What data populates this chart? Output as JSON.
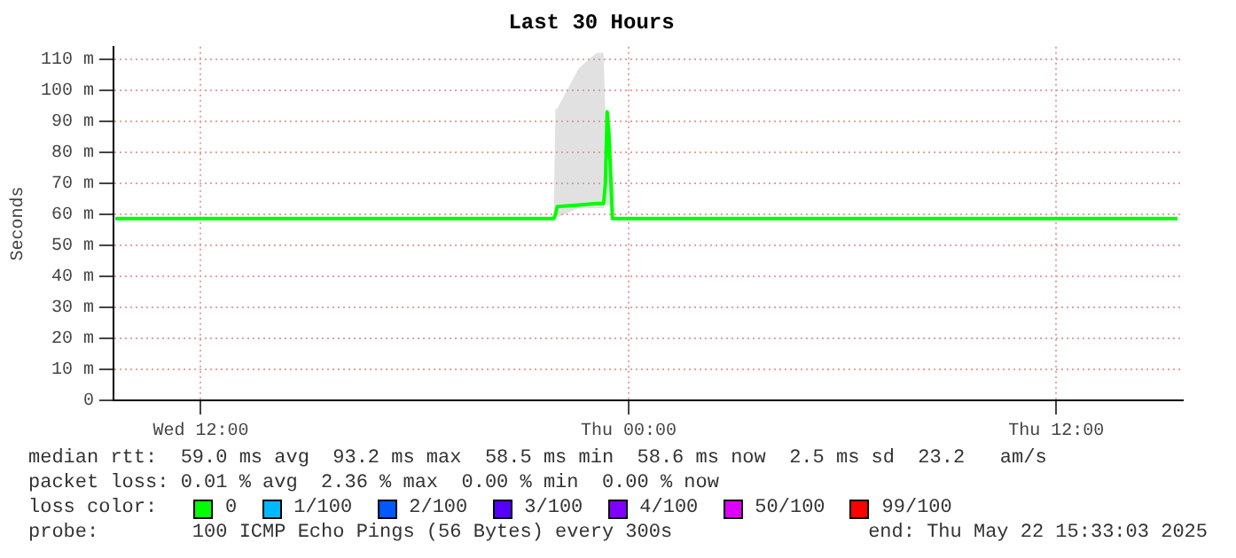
{
  "chart_data": {
    "type": "line",
    "title": "Last 30 Hours",
    "ylabel": "Seconds",
    "legend_title": "loss color:",
    "x": [
      "2025-05-21T09:36",
      "2025-05-21T21:54",
      "2025-05-21T21:57",
      "2025-05-21T22:00",
      "2025-05-21T22:36",
      "2025-05-21T23:06",
      "2025-05-21T23:18",
      "2025-05-21T23:21",
      "2025-05-21T23:24",
      "2025-05-21T23:27",
      "2025-05-21T23:33",
      "2025-05-22T15:24"
    ],
    "xlim": [
      "2025-05-21T09:33",
      "2025-05-22T15:33"
    ],
    "xticks": [
      {
        "value": "2025-05-21T12:00",
        "label": "Wed 12:00"
      },
      {
        "value": "2025-05-22T00:00",
        "label": "Thu 00:00"
      },
      {
        "value": "2025-05-22T12:00",
        "label": "Thu 12:00"
      }
    ],
    "ylim": [
      0,
      114
    ],
    "yticks": [
      {
        "value": 0,
        "label": "0"
      },
      {
        "value": 10,
        "label": "10 m"
      },
      {
        "value": 20,
        "label": "20 m"
      },
      {
        "value": 30,
        "label": "30 m"
      },
      {
        "value": 40,
        "label": "40 m"
      },
      {
        "value": 50,
        "label": "50 m"
      },
      {
        "value": 60,
        "label": "60 m"
      },
      {
        "value": 70,
        "label": "70 m"
      },
      {
        "value": 80,
        "label": "80 m"
      },
      {
        "value": 90,
        "label": "90 m"
      },
      {
        "value": 100,
        "label": "100 m"
      },
      {
        "value": 110,
        "label": "110 m"
      }
    ],
    "series": [
      {
        "name": "0",
        "color": "#00ff00",
        "values": [
          58.6,
          58.6,
          60,
          62.5,
          63,
          63.5,
          63.5,
          70,
          93,
          86,
          58.6,
          58.6
        ],
        "lower": [
          58.6,
          58.6,
          58,
          59,
          62,
          62,
          62,
          63,
          63,
          63,
          58.6,
          58.6
        ],
        "upper": [
          58.6,
          58.6,
          94,
          94,
          107,
          112,
          112,
          93,
          93,
          93,
          58.6,
          58.6
        ]
      },
      {
        "name": "1/100",
        "color": "#00b8ff",
        "values": [
          null,
          null,
          null,
          null,
          null,
          null,
          null,
          null,
          null,
          null,
          null,
          null
        ]
      },
      {
        "name": "2/100",
        "color": "#0059ff",
        "values": [
          null,
          null,
          null,
          null,
          null,
          null,
          null,
          null,
          null,
          null,
          null,
          null
        ]
      },
      {
        "name": "3/100",
        "color": "#5500ff",
        "values": [
          null,
          null,
          null,
          null,
          null,
          null,
          null,
          null,
          null,
          null,
          null,
          null
        ]
      },
      {
        "name": "4/100",
        "color": "#7e00ff",
        "values": [
          null,
          null,
          null,
          null,
          null,
          null,
          null,
          null,
          null,
          null,
          null,
          null
        ]
      },
      {
        "name": "50/100",
        "color": "#dd00ff",
        "values": [
          null,
          null,
          null,
          null,
          null,
          null,
          null,
          null,
          null,
          null,
          null,
          null
        ]
      },
      {
        "name": "99/100",
        "color": "#ff0000",
        "values": [
          null,
          null,
          null,
          null,
          null,
          null,
          null,
          null,
          null,
          null,
          null,
          null
        ]
      }
    ],
    "grid": true,
    "legend": "bottom",
    "marker": "none",
    "line_style": "solid",
    "annotations": [
      "median rtt:  59.0 ms avg  93.2 ms max  58.5 ms min  58.6 ms now  2.5 ms sd  23.2   am/s",
      "packet loss: 0.01 % avg  2.36 % max  0.00 % min  0.00 % now",
      "probe:        100 ICMP Echo Pings (56 Bytes) every 300s",
      "end: Thu May 22 15:33:03 2025"
    ]
  }
}
